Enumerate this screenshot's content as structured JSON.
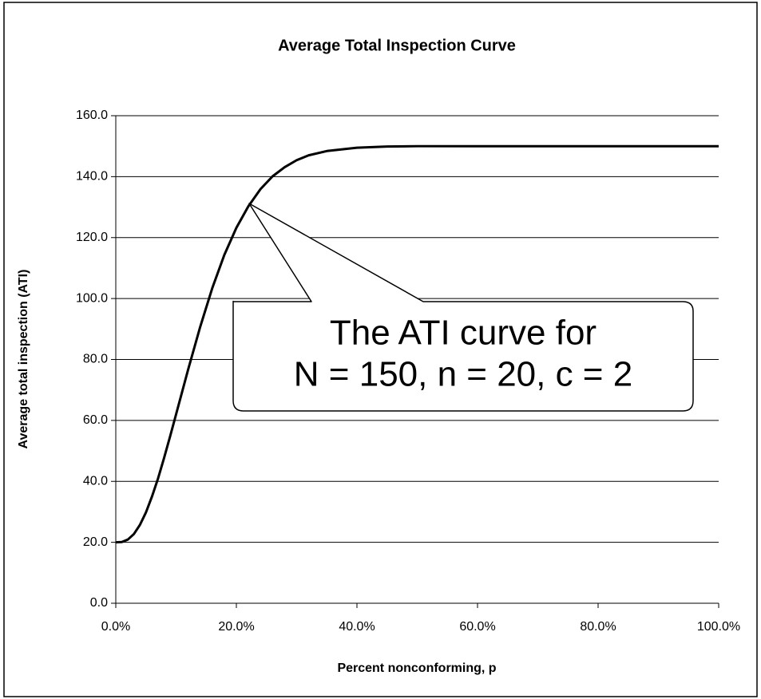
{
  "chart_data": {
    "type": "line",
    "title": "Average Total Inspection Curve",
    "x_label": "Percent nonconforming, p",
    "y_label": "Average total inspection (ATI)",
    "annotation": [
      "The ATI curve for",
      "N = 150, n = 20, c = 2"
    ],
    "x": [
      0,
      1,
      2,
      3,
      4,
      5,
      6,
      7,
      8,
      9,
      10,
      12,
      14,
      16,
      18,
      20,
      22,
      24,
      26,
      28,
      30,
      32,
      35,
      40,
      45,
      50,
      60,
      70,
      80,
      90,
      100
    ],
    "series": [
      {
        "color": "#000000",
        "values": [
          20.0,
          20.1,
          20.9,
          22.7,
          25.7,
          29.8,
          35.0,
          40.9,
          47.6,
          54.7,
          62.0,
          76.7,
          90.7,
          103.4,
          114.3,
          123.2,
          130.3,
          135.9,
          140.1,
          143.1,
          145.4,
          147.0,
          148.4,
          149.5,
          149.9,
          150.0,
          150.0,
          150.0,
          150.0,
          150.0,
          150.0
        ]
      }
    ],
    "xlim": [
      0,
      100
    ],
    "xticks": [
      {
        "value": 0,
        "label": "0.0%"
      },
      {
        "value": 20,
        "label": "20.0%"
      },
      {
        "value": 40,
        "label": "40.0%"
      },
      {
        "value": 60,
        "label": "60.0%"
      },
      {
        "value": 80,
        "label": "80.0%"
      },
      {
        "value": 100,
        "label": "100.0%"
      }
    ],
    "ylim": [
      0,
      160
    ],
    "yticks": [
      {
        "value": 0,
        "label": "0.0"
      },
      {
        "value": 20,
        "label": "20.0"
      },
      {
        "value": 40,
        "label": "40.0"
      },
      {
        "value": 60,
        "label": "60.0"
      },
      {
        "value": 80,
        "label": "80.0"
      },
      {
        "value": 100,
        "label": "100.0"
      },
      {
        "value": 120,
        "label": "120.0"
      },
      {
        "value": 140,
        "label": "140.0"
      },
      {
        "value": 160,
        "label": "160.0"
      }
    ],
    "grid": true
  }
}
